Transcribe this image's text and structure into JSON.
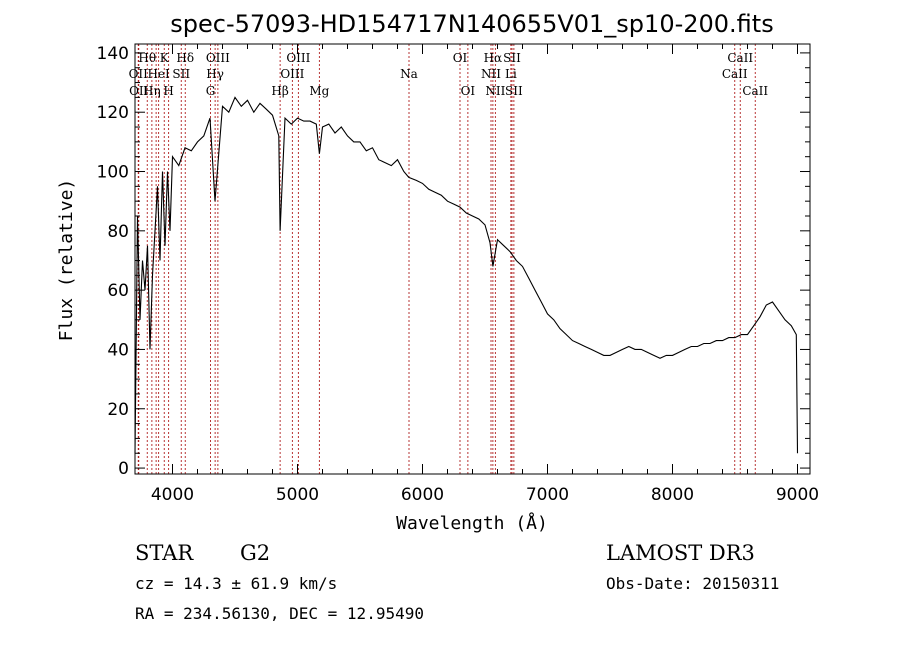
{
  "chart_data": {
    "type": "line",
    "title": "spec-57093-HD154717N140655V01_sp10-200.fits",
    "xlabel": "Wavelength (Å)",
    "ylabel": "Flux (relative)",
    "xlim": [
      3700,
      9100
    ],
    "ylim": [
      -2,
      143
    ],
    "x_ticks": [
      4000,
      5000,
      6000,
      7000,
      8000,
      9000
    ],
    "y_ticks": [
      0,
      20,
      40,
      60,
      80,
      100,
      120,
      140
    ],
    "grid": false,
    "series": [
      {
        "x": [
          3700,
          3720,
          3740,
          3760,
          3780,
          3800,
          3820,
          3840,
          3860,
          3880,
          3900,
          3920,
          3940,
          3960,
          3980,
          4000,
          4050,
          4100,
          4150,
          4200,
          4250,
          4300,
          4340,
          4400,
          4450,
          4500,
          4550,
          4600,
          4650,
          4700,
          4750,
          4800,
          4850,
          4861,
          4900,
          4950,
          5000,
          5050,
          5100,
          5150,
          5175,
          5200,
          5250,
          5300,
          5350,
          5400,
          5450,
          5500,
          5550,
          5600,
          5650,
          5700,
          5750,
          5800,
          5850,
          5890,
          5950,
          6000,
          6050,
          6100,
          6150,
          6200,
          6250,
          6300,
          6350,
          6400,
          6450,
          6500,
          6540,
          6563,
          6600,
          6650,
          6700,
          6750,
          6800,
          6850,
          6900,
          6950,
          7000,
          7050,
          7100,
          7150,
          7200,
          7250,
          7300,
          7350,
          7400,
          7450,
          7500,
          7550,
          7600,
          7650,
          7700,
          7750,
          7800,
          7850,
          7900,
          7950,
          8000,
          8050,
          8100,
          8150,
          8200,
          8250,
          8300,
          8350,
          8400,
          8450,
          8500,
          8550,
          8600,
          8650,
          8700,
          8750,
          8800,
          8850,
          8900,
          8950,
          8990,
          9000
        ],
        "y": [
          5,
          85,
          50,
          70,
          60,
          75,
          40,
          65,
          80,
          95,
          70,
          100,
          75,
          100,
          80,
          105,
          102,
          108,
          107,
          110,
          112,
          118,
          90,
          122,
          120,
          125,
          122,
          124,
          120,
          123,
          121,
          119,
          112,
          80,
          118,
          116,
          118,
          117,
          117,
          116,
          106,
          115,
          116,
          113,
          115,
          112,
          110,
          110,
          107,
          108,
          104,
          103,
          102,
          104,
          100,
          98,
          97,
          96,
          94,
          93,
          92,
          90,
          89,
          88,
          86,
          85,
          84,
          82,
          76,
          68,
          77,
          75,
          73,
          70,
          68,
          64,
          60,
          56,
          52,
          50,
          47,
          45,
          43,
          42,
          41,
          40,
          39,
          38,
          38,
          39,
          40,
          41,
          40,
          40,
          39,
          38,
          37,
          38,
          38,
          39,
          40,
          41,
          41,
          42,
          42,
          43,
          43,
          44,
          44,
          45,
          45,
          48,
          51,
          55,
          56,
          53,
          50,
          48,
          45,
          5
        ]
      }
    ],
    "line_markers": [
      {
        "x": 3726,
        "label": "OII",
        "row": 2
      },
      {
        "x": 3730,
        "label": "OII",
        "row": 3
      },
      {
        "x": 3798,
        "label": "Hθ",
        "row": 1
      },
      {
        "x": 3835,
        "label": "Hη",
        "row": 3
      },
      {
        "x": 3869,
        "label": "",
        "row": 0
      },
      {
        "x": 3889,
        "label": "HeI",
        "row": 2
      },
      {
        "x": 3934,
        "label": "K",
        "row": 1
      },
      {
        "x": 3969,
        "label": "H",
        "row": 3
      },
      {
        "x": 4070,
        "label": "SII",
        "row": 2
      },
      {
        "x": 4102,
        "label": "Hδ",
        "row": 1
      },
      {
        "x": 4304,
        "label": "G",
        "row": 3
      },
      {
        "x": 4341,
        "label": "Hγ",
        "row": 2
      },
      {
        "x": 4363,
        "label": "OIII",
        "row": 1
      },
      {
        "x": 4861,
        "label": "Hβ",
        "row": 3
      },
      {
        "x": 4959,
        "label": "OIII",
        "row": 2
      },
      {
        "x": 5007,
        "label": "OIII",
        "row": 1
      },
      {
        "x": 5175,
        "label": "Mg",
        "row": 3
      },
      {
        "x": 5892,
        "label": "Na",
        "row": 2
      },
      {
        "x": 6300,
        "label": "OI",
        "row": 1
      },
      {
        "x": 6363,
        "label": "OI",
        "row": 3
      },
      {
        "x": 6548,
        "label": "NII",
        "row": 2
      },
      {
        "x": 6563,
        "label": "Hα",
        "row": 1
      },
      {
        "x": 6583,
        "label": "NII",
        "row": 3
      },
      {
        "x": 6707,
        "label": "Li",
        "row": 2
      },
      {
        "x": 6716,
        "label": "SII",
        "row": 1
      },
      {
        "x": 6731,
        "label": "SII",
        "row": 3
      },
      {
        "x": 8498,
        "label": "CaII",
        "row": 2
      },
      {
        "x": 8542,
        "label": "CaII",
        "row": 1
      },
      {
        "x": 8662,
        "label": "CaII",
        "row": 3
      }
    ]
  },
  "info": {
    "object_class": "STAR",
    "subclass": "G2",
    "survey": "LAMOST DR3",
    "redshift": "cz = 14.3 ± 61.9 km/s",
    "obs_date": "Obs-Date: 20150311",
    "coords": "RA = 234.56130, DEC =  12.95490"
  },
  "colors": {
    "line_marker": "#b02020",
    "spectrum": "#000000"
  }
}
